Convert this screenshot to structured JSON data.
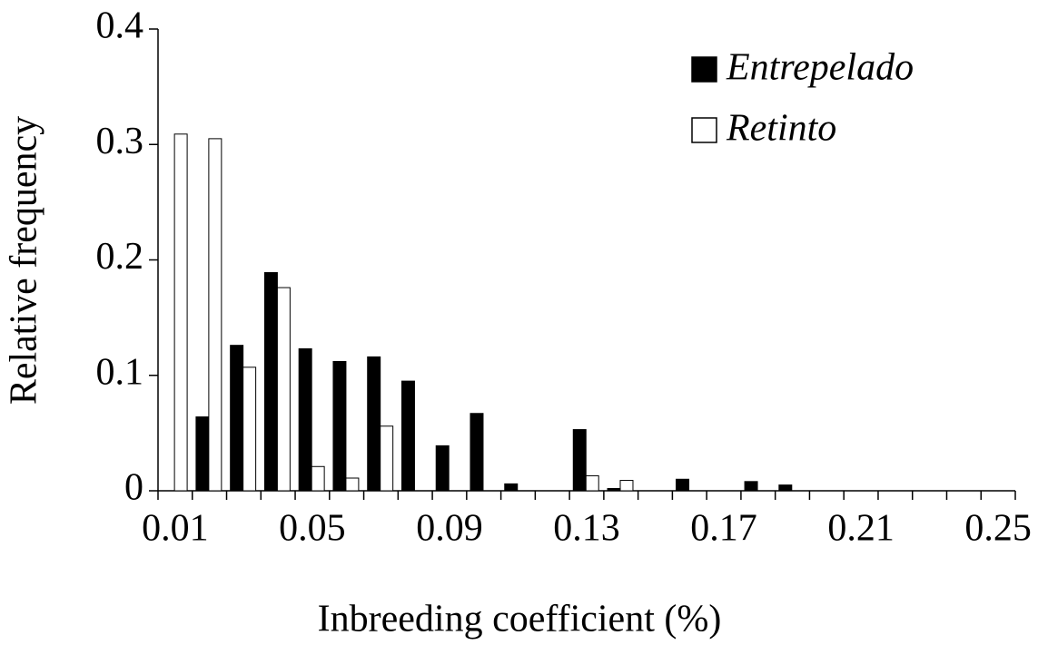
{
  "chart_data": {
    "type": "bar",
    "x_label": "Inbreeding coefficient (%)",
    "y_label": "Relative frequency",
    "categories": [
      "0.01",
      null,
      null,
      null,
      "0.05",
      null,
      null,
      null,
      "0.09",
      null,
      null,
      null,
      "0.13",
      null,
      null,
      null,
      "0.17",
      null,
      null,
      null,
      "0.21",
      null,
      null,
      null,
      "0.25"
    ],
    "series": [
      {
        "name": "Entrepelado",
        "color": "#000000",
        "values": [
          0,
          0.064,
          0.126,
          0.189,
          0.123,
          0.112,
          0.116,
          0.095,
          0.039,
          0.067,
          0.006,
          0,
          0.053,
          0.002,
          0,
          0.01,
          0,
          0.008,
          0.005,
          0,
          0,
          0,
          0,
          0,
          0
        ]
      },
      {
        "name": "Retinto",
        "color": "#ffffff",
        "values": [
          0.309,
          0.305,
          0.107,
          0.176,
          0.021,
          0.011,
          0.056,
          0,
          0,
          0,
          0,
          0,
          0.013,
          0.009,
          0,
          0,
          0,
          0,
          0,
          0,
          0,
          0,
          0,
          0,
          0
        ]
      }
    ],
    "ylim": [
      0,
      0.4
    ],
    "yticks": [
      0,
      0.1,
      0.2,
      0.3,
      0.4
    ],
    "legend": "upper right",
    "grid": false
  }
}
